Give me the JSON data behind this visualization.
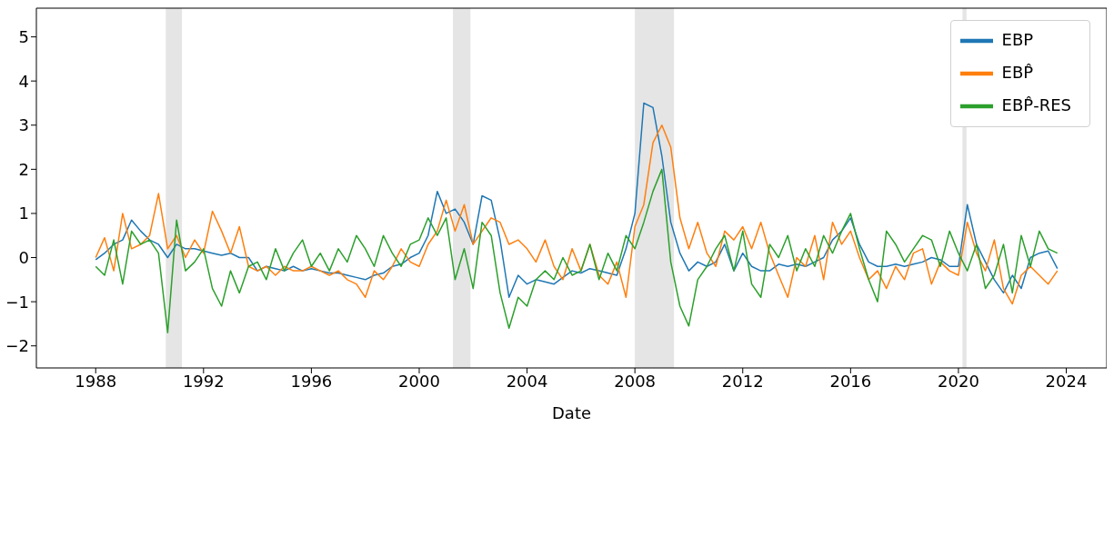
{
  "chart_data": {
    "type": "line",
    "xlabel": "Date",
    "legend": "top right",
    "grid": false,
    "xlim": [
      1985.8,
      2025.5
    ],
    "xticks": [
      1988,
      1992,
      1996,
      2000,
      2004,
      2008,
      2012,
      2016,
      2020,
      2024
    ],
    "ylim": [
      -2.5,
      5.65
    ],
    "yticks": [
      -2,
      -1,
      0,
      1,
      2,
      3,
      4,
      5
    ],
    "bands": [
      {
        "axis": "x",
        "from": 1990.6,
        "to": 1991.2,
        "color": "#e5e5e5"
      },
      {
        "axis": "x",
        "from": 2001.25,
        "to": 2001.9,
        "color": "#e5e5e5"
      },
      {
        "axis": "x",
        "from": 2008.0,
        "to": 2009.45,
        "color": "#e5e5e5"
      },
      {
        "axis": "x",
        "from": 2020.15,
        "to": 2020.3,
        "color": "#e5e5e5"
      }
    ],
    "x": [
      1988,
      1988.33,
      1988.67,
      1989,
      1989.33,
      1989.67,
      1990,
      1990.33,
      1990.67,
      1991,
      1991.33,
      1991.67,
      1992,
      1992.33,
      1992.67,
      1993,
      1993.33,
      1993.67,
      1994,
      1994.33,
      1994.67,
      1995,
      1995.33,
      1995.67,
      1996,
      1996.33,
      1996.67,
      1997,
      1997.33,
      1997.67,
      1998,
      1998.33,
      1998.67,
      1999,
      1999.33,
      1999.67,
      2000,
      2000.33,
      2000.67,
      2001,
      2001.33,
      2001.67,
      2002,
      2002.33,
      2002.67,
      2003,
      2003.33,
      2003.67,
      2004,
      2004.33,
      2004.67,
      2005,
      2005.33,
      2005.67,
      2006,
      2006.33,
      2006.67,
      2007,
      2007.33,
      2007.67,
      2008,
      2008.33,
      2008.67,
      2009,
      2009.33,
      2009.67,
      2010,
      2010.33,
      2010.67,
      2011,
      2011.33,
      2011.67,
      2012,
      2012.33,
      2012.67,
      2013,
      2013.33,
      2013.67,
      2014,
      2014.33,
      2014.67,
      2015,
      2015.33,
      2015.67,
      2016,
      2016.33,
      2016.67,
      2017,
      2017.33,
      2017.67,
      2018,
      2018.33,
      2018.67,
      2019,
      2019.33,
      2019.67,
      2020,
      2020.33,
      2020.67,
      2021,
      2021.33,
      2021.67,
      2022,
      2022.33,
      2022.67,
      2023,
      2023.33,
      2023.67
    ],
    "series": [
      {
        "name": "EBP",
        "color": "#1f77b4",
        "values": [
          -0.05,
          0.1,
          0.3,
          0.4,
          0.85,
          0.6,
          0.4,
          0.3,
          0.0,
          0.3,
          0.2,
          0.2,
          0.15,
          0.1,
          0.05,
          0.1,
          0.0,
          0.0,
          -0.3,
          -0.2,
          -0.25,
          -0.3,
          -0.2,
          -0.3,
          -0.25,
          -0.3,
          -0.35,
          -0.35,
          -0.4,
          -0.45,
          -0.5,
          -0.4,
          -0.35,
          -0.2,
          -0.15,
          0.0,
          0.1,
          0.5,
          1.5,
          1.0,
          1.1,
          0.8,
          0.3,
          1.4,
          1.3,
          0.4,
          -0.9,
          -0.4,
          -0.6,
          -0.5,
          -0.55,
          -0.6,
          -0.45,
          -0.3,
          -0.35,
          -0.25,
          -0.3,
          -0.35,
          -0.4,
          0.2,
          1.0,
          3.5,
          3.4,
          2.3,
          0.8,
          0.1,
          -0.3,
          -0.1,
          -0.2,
          -0.1,
          0.3,
          -0.3,
          0.1,
          -0.2,
          -0.3,
          -0.3,
          -0.15,
          -0.2,
          -0.15,
          -0.2,
          -0.1,
          0.0,
          0.4,
          0.6,
          0.9,
          0.3,
          -0.1,
          -0.2,
          -0.2,
          -0.15,
          -0.2,
          -0.15,
          -0.1,
          0.0,
          -0.05,
          -0.2,
          -0.2,
          1.2,
          0.3,
          -0.1,
          -0.5,
          -0.8,
          -0.4,
          -0.7,
          0.0,
          0.1,
          0.15,
          -0.25
        ]
      },
      {
        "name": "EBP̂",
        "color": "#ff7f0e",
        "values": [
          0.0,
          0.45,
          -0.3,
          1.0,
          0.2,
          0.3,
          0.5,
          1.45,
          0.2,
          0.5,
          0.0,
          0.4,
          0.1,
          1.05,
          0.6,
          0.1,
          0.7,
          -0.2,
          -0.3,
          -0.2,
          -0.4,
          -0.2,
          -0.3,
          -0.3,
          -0.2,
          -0.3,
          -0.4,
          -0.3,
          -0.5,
          -0.6,
          -0.9,
          -0.3,
          -0.5,
          -0.2,
          0.2,
          -0.1,
          -0.2,
          0.3,
          0.6,
          1.3,
          0.6,
          1.2,
          0.3,
          0.6,
          0.9,
          0.8,
          0.3,
          0.4,
          0.2,
          -0.1,
          0.4,
          -0.2,
          -0.5,
          0.2,
          -0.3,
          0.3,
          -0.4,
          -0.6,
          -0.1,
          -0.9,
          0.7,
          1.2,
          2.6,
          3.0,
          2.5,
          0.9,
          0.2,
          0.8,
          0.1,
          -0.2,
          0.6,
          0.4,
          0.7,
          0.2,
          0.8,
          0.1,
          -0.4,
          -0.9,
          0.0,
          -0.2,
          0.5,
          -0.5,
          0.8,
          0.3,
          0.6,
          0.0,
          -0.5,
          -0.3,
          -0.7,
          -0.2,
          -0.5,
          0.1,
          0.2,
          -0.6,
          -0.1,
          -0.3,
          -0.4,
          0.8,
          0.1,
          -0.3,
          0.4,
          -0.7,
          -1.05,
          -0.4,
          -0.2,
          -0.4,
          -0.6,
          -0.3
        ]
      },
      {
        "name": "EBP̂-RES",
        "color": "#2ca02c",
        "values": [
          -0.2,
          -0.4,
          0.4,
          -0.6,
          0.6,
          0.3,
          0.4,
          0.1,
          -1.7,
          0.85,
          -0.3,
          -0.1,
          0.2,
          -0.7,
          -1.1,
          -0.3,
          -0.8,
          -0.2,
          -0.1,
          -0.5,
          0.2,
          -0.3,
          0.1,
          0.4,
          -0.2,
          0.1,
          -0.3,
          0.2,
          -0.1,
          0.5,
          0.2,
          -0.2,
          0.5,
          0.1,
          -0.2,
          0.3,
          0.4,
          0.9,
          0.5,
          0.9,
          -0.5,
          0.2,
          -0.7,
          0.8,
          0.5,
          -0.8,
          -1.6,
          -0.9,
          -1.1,
          -0.5,
          -0.3,
          -0.5,
          0.0,
          -0.4,
          -0.3,
          0.3,
          -0.5,
          0.1,
          -0.3,
          0.5,
          0.2,
          0.8,
          1.5,
          2.0,
          -0.1,
          -1.1,
          -1.55,
          -0.5,
          -0.2,
          0.2,
          0.5,
          -0.3,
          0.6,
          -0.6,
          -0.9,
          0.3,
          0.0,
          0.5,
          -0.3,
          0.2,
          -0.2,
          0.5,
          0.1,
          0.6,
          1.0,
          0.2,
          -0.5,
          -1.0,
          0.6,
          0.3,
          -0.1,
          0.2,
          0.5,
          0.4,
          -0.2,
          0.6,
          0.1,
          -0.3,
          0.3,
          -0.7,
          -0.4,
          0.3,
          -0.8,
          0.5,
          -0.2,
          0.6,
          0.2,
          0.1
        ]
      }
    ]
  }
}
